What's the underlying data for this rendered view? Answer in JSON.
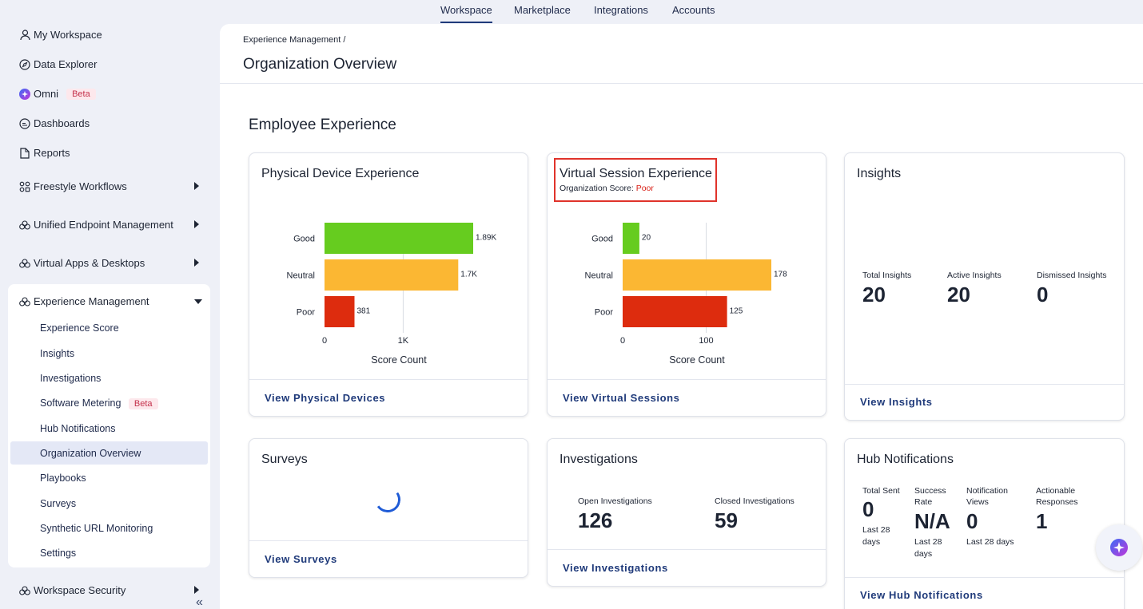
{
  "topnav": {
    "tabs": [
      {
        "label": "Workspace",
        "active": true
      },
      {
        "label": "Marketplace",
        "active": false
      },
      {
        "label": "Integrations",
        "active": false
      },
      {
        "label": "Accounts",
        "active": false
      }
    ]
  },
  "sidebar": {
    "items": [
      {
        "label": "My Workspace",
        "icon": "user-icon"
      },
      {
        "label": "Data Explorer",
        "icon": "compass-icon"
      },
      {
        "label": "Omni",
        "icon": "omni-icon",
        "badge": "Beta"
      },
      {
        "label": "Dashboards",
        "icon": "dashboard-icon"
      },
      {
        "label": "Reports",
        "icon": "document-icon"
      },
      {
        "label": "Freestyle Workflows",
        "icon": "workflow-icon"
      },
      {
        "label": "Unified Endpoint Management",
        "icon": "cloud-icon"
      },
      {
        "label": "Virtual Apps & Desktops",
        "icon": "cloud-icon"
      },
      {
        "label": "Experience Management",
        "icon": "cloud-icon"
      },
      {
        "label": "Workspace Security",
        "icon": "cloud-icon"
      }
    ],
    "experience_subitems": [
      {
        "label": "Experience Score"
      },
      {
        "label": "Insights"
      },
      {
        "label": "Investigations"
      },
      {
        "label": "Software Metering",
        "badge": "Beta"
      },
      {
        "label": "Hub Notifications"
      },
      {
        "label": "Organization Overview",
        "active": true
      },
      {
        "label": "Playbooks"
      },
      {
        "label": "Surveys"
      },
      {
        "label": "Synthetic URL Monitoring"
      },
      {
        "label": "Settings"
      }
    ],
    "collapse_icon": "double-chevron-left-icon"
  },
  "header": {
    "breadcrumb": "Experience Management  /",
    "title": "Organization Overview"
  },
  "section_title": "Employee Experience",
  "cards": {
    "physical": {
      "title": "Physical Device Experience",
      "link": "View Physical Devices"
    },
    "virtual": {
      "title": "Virtual Session Experience",
      "org_score_label": "Organization Score: ",
      "org_score_value": "Poor",
      "link": "View Virtual Sessions"
    },
    "insights": {
      "title": "Insights",
      "total_label": "Total Insights",
      "total_value": "20",
      "active_label": "Active Insights",
      "active_value": "20",
      "dismissed_label": "Dismissed Insights",
      "dismissed_value": "0",
      "link": "View Insights"
    },
    "surveys": {
      "title": "Surveys",
      "link": "View Surveys"
    },
    "investigations": {
      "title": "Investigations",
      "open_label": "Open Investigations",
      "open_value": "126",
      "closed_label": "Closed Investigations",
      "closed_value": "59",
      "link": "View Investigations"
    },
    "hub": {
      "title": "Hub Notifications",
      "total_sent_label": "Total Sent",
      "total_sent_value": "0",
      "total_sent_sub": "Last 28 days",
      "success_label": "Success Rate",
      "success_value": "N/A",
      "success_sub": "Last 28 days",
      "views_label": "Notification Views",
      "views_value": "0",
      "views_sub": "Last 28 days",
      "actionable_label": "Actionable Responses",
      "actionable_value": "1",
      "link": "View Hub Notifications"
    }
  },
  "chart_data": [
    {
      "type": "bar",
      "orientation": "horizontal",
      "categories": [
        "Good",
        "Neutral",
        "Poor"
      ],
      "values": [
        1890,
        1700,
        381
      ],
      "data_labels": [
        "1.89K",
        "1.7K",
        "381"
      ],
      "colors": [
        "#66cc1f",
        "#fbb733",
        "#dd2c0e"
      ],
      "xlabel": "Score Count",
      "xticks": [
        "0",
        "1K"
      ],
      "tick_values": [
        0,
        1000
      ],
      "xlim": [
        0,
        1890
      ]
    },
    {
      "type": "bar",
      "orientation": "horizontal",
      "categories": [
        "Good",
        "Neutral",
        "Poor"
      ],
      "values": [
        20,
        178,
        125
      ],
      "data_labels": [
        "20",
        "178",
        "125"
      ],
      "colors": [
        "#66cc1f",
        "#fbb733",
        "#dd2c0e"
      ],
      "xlabel": "Score Count",
      "xticks": [
        "0",
        "100"
      ],
      "tick_values": [
        0,
        100
      ],
      "xlim": [
        0,
        178
      ]
    }
  ]
}
